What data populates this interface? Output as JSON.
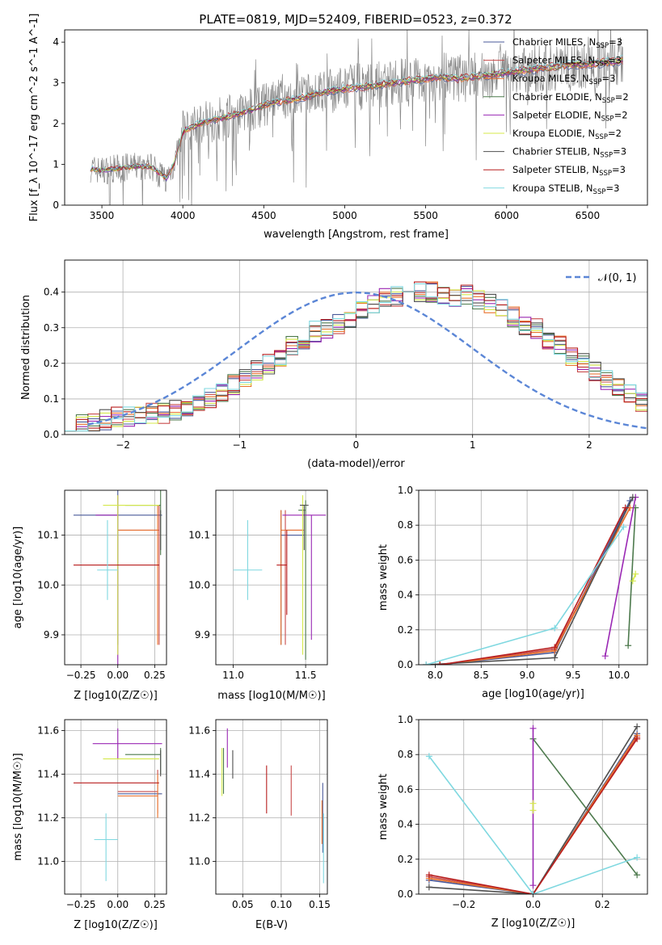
{
  "figure_title": "PLATE=0819, MJD=52409, FIBERID=0523, z=0.372",
  "colors": {
    "Chabrier MILES": "#4a5a9a",
    "Salpeter MILES": "#c84b4b",
    "Kroupa MILES": "#e8702a",
    "Chabrier ELODIE": "#4d7a4d",
    "Salpeter ELODIE": "#9a28b4",
    "Kroupa ELODIE": "#d4e84a",
    "Chabrier STELIB": "#505050",
    "Salpeter STELIB": "#b81e1e",
    "Kroupa STELIB": "#7fd8e0",
    "data": "#8a8a8a",
    "gauss": "#5b86d6",
    "grid": "#b0b0b0"
  },
  "chart_data": [
    {
      "id": "spectrum",
      "type": "line",
      "title": "PLATE=0819, MJD=52409, FIBERID=0523, z=0.372",
      "xlabel": "wavelength [Angstrom, rest frame]",
      "ylabel": "Flux [f_λ 10^-17 erg cm^-2 s^-1 A^-1]",
      "xlim": [
        3270,
        6870
      ],
      "ylim": [
        0,
        4.3
      ],
      "xticks": [
        3500,
        4000,
        4500,
        5000,
        5500,
        6000,
        6500
      ],
      "yticks": [
        0,
        1,
        2,
        3,
        4
      ],
      "grid": false,
      "legend_position": "top-right",
      "model_anchors": {
        "x": [
          3430,
          3500,
          3600,
          3700,
          3800,
          3900,
          3950,
          4000,
          4100,
          4200,
          4300,
          4400,
          4500,
          4600,
          4700,
          4800,
          4900,
          5000,
          5100,
          5200,
          5300,
          5400,
          5500,
          5600,
          5700,
          5800,
          5900,
          6000,
          6100,
          6200,
          6300,
          6400,
          6500,
          6600,
          6720
        ],
        "y": [
          0.9,
          0.85,
          0.9,
          0.95,
          0.95,
          0.65,
          1.05,
          1.8,
          2.0,
          2.1,
          2.2,
          2.3,
          2.45,
          2.55,
          2.6,
          2.7,
          2.8,
          2.85,
          2.9,
          2.95,
          3.0,
          3.05,
          3.1,
          3.15,
          3.1,
          3.15,
          3.2,
          3.25,
          3.3,
          3.35,
          3.4,
          3.45,
          3.45,
          3.5,
          3.55
        ]
      },
      "series": [
        {
          "name": "Chabrier MILES, N_SSP=3",
          "label_main": "Chabrier MILES, N",
          "label_sub": "SSP",
          "label_tail": "=3"
        },
        {
          "name": "Salpeter MILES, N_SSP=3",
          "label_main": "Salpeter MILES, N",
          "label_sub": "SSP",
          "label_tail": "=3"
        },
        {
          "name": "Kroupa MILES, N_SSP=3",
          "label_main": "Kroupa MILES, N",
          "label_sub": "SSP",
          "label_tail": "=3"
        },
        {
          "name": "Chabrier ELODIE, N_SSP=2",
          "label_main": "Chabrier ELODIE, N",
          "label_sub": "SSP",
          "label_tail": "=2"
        },
        {
          "name": "Salpeter ELODIE, N_SSP=2",
          "label_main": "Salpeter ELODIE, N",
          "label_sub": "SSP",
          "label_tail": "=2"
        },
        {
          "name": "Kroupa ELODIE, N_SSP=2",
          "label_main": "Kroupa ELODIE, N",
          "label_sub": "SSP",
          "label_tail": "=2"
        },
        {
          "name": "Chabrier STELIB, N_SSP=3",
          "label_main": "Chabrier STELIB, N",
          "label_sub": "SSP",
          "label_tail": "=3"
        },
        {
          "name": "Salpeter STELIB, N_SSP=3",
          "label_main": "Salpeter STELIB, N",
          "label_sub": "SSP",
          "label_tail": "=3"
        },
        {
          "name": "Kroupa STELIB, N_SSP=3",
          "label_main": "Kroupa STELIB, N",
          "label_sub": "SSP",
          "label_tail": "=3"
        }
      ]
    },
    {
      "id": "residuals",
      "type": "area",
      "xlabel": "(data-model)/error",
      "ylabel": "Normed distribution",
      "xlim": [
        -2.5,
        2.5
      ],
      "ylim": [
        0,
        0.49
      ],
      "xticks": [
        -2,
        -1,
        0,
        1,
        2
      ],
      "yticks": [
        0.0,
        0.1,
        0.2,
        0.3,
        0.4
      ],
      "grid": true,
      "legend_position": "top-right",
      "legend_label": "𝒩(0, 1)",
      "hist_bin_width": 0.1,
      "hist_edges_start": -2.5,
      "hist_envelope": [
        0.03,
        0.03,
        0.03,
        0.04,
        0.05,
        0.05,
        0.06,
        0.06,
        0.06,
        0.07,
        0.08,
        0.09,
        0.1,
        0.12,
        0.14,
        0.16,
        0.18,
        0.2,
        0.22,
        0.25,
        0.27,
        0.29,
        0.3,
        0.31,
        0.33,
        0.35,
        0.37,
        0.38,
        0.39,
        0.39,
        0.4,
        0.4,
        0.39,
        0.39,
        0.39,
        0.38,
        0.37,
        0.35,
        0.33,
        0.31,
        0.3,
        0.27,
        0.25,
        0.22,
        0.2,
        0.18,
        0.15,
        0.13,
        0.11,
        0.09
      ]
    },
    {
      "id": "age_vs_Z",
      "type": "scatter",
      "xlabel": "Z [log10(Z/Z☉)]",
      "ylabel": "age [log10(age/yr)]",
      "xlim": [
        -0.36,
        0.33
      ],
      "ylim": [
        9.84,
        10.19
      ],
      "xticks": [
        -0.25,
        0.0,
        0.25
      ],
      "yticks": [
        9.9,
        10.0,
        10.1
      ],
      "grid": true,
      "errorbars": [
        {
          "series": "Chabrier MILES",
          "x": 0.0,
          "y": 10.14,
          "xerr": [
            0.3,
            0.3
          ],
          "yerr": [
            0.26,
            0.05
          ]
        },
        {
          "series": "Salpeter MILES",
          "x": 0.28,
          "y": 10.11,
          "xerr": [
            0.28,
            0.0
          ],
          "yerr": [
            0.23,
            0.05
          ]
        },
        {
          "series": "Kroupa MILES",
          "x": 0.27,
          "y": 10.11,
          "xerr": [
            0.27,
            0.0
          ],
          "yerr": [
            0.23,
            0.05
          ]
        },
        {
          "series": "Chabrier ELODIE",
          "x": 0.29,
          "y": 10.16,
          "xerr": [
            0.24,
            0.0
          ],
          "yerr": [
            0.1,
            0.03
          ]
        },
        {
          "series": "Salpeter ELODIE",
          "x": 0.0,
          "y": 10.14,
          "xerr": [
            0.15,
            0.0
          ],
          "yerr": [
            0.3,
            0.04
          ]
        },
        {
          "series": "Kroupa ELODIE",
          "x": 0.0,
          "y": 10.16,
          "xerr": [
            0.1,
            0.28
          ],
          "yerr": [
            0.3,
            0.02
          ]
        },
        {
          "series": "Chabrier STELIB",
          "x": 0.29,
          "y": 10.11,
          "xerr": [
            0.0,
            0.0
          ],
          "yerr": [
            0.04,
            0.04
          ]
        },
        {
          "series": "Salpeter STELIB",
          "x": 0.0,
          "y": 10.04,
          "xerr": [
            0.3,
            0.28
          ],
          "yerr": [
            0.0,
            0.0
          ]
        },
        {
          "series": "Kroupa STELIB",
          "x": -0.07,
          "y": 10.03,
          "xerr": [
            0.07,
            0.07
          ],
          "yerr": [
            0.06,
            0.1
          ]
        }
      ]
    },
    {
      "id": "age_vs_mass",
      "type": "scatter",
      "xlabel": "mass [log10(M/M☉)]",
      "ylabel": "",
      "xlim": [
        10.88,
        11.65
      ],
      "ylim": [
        9.84,
        10.19
      ],
      "xticks": [
        11.0,
        11.5
      ],
      "yticks": [
        9.9,
        10.0,
        10.1
      ],
      "grid": true,
      "errorbars": [
        {
          "series": "Chabrier MILES",
          "x": 11.33,
          "y": 10.1,
          "xerr": [
            0.0,
            0.16
          ],
          "yerr": [
            0.22,
            0.05
          ]
        },
        {
          "series": "Salpeter MILES",
          "x": 11.36,
          "y": 10.11,
          "xerr": [
            0.0,
            0.13
          ],
          "yerr": [
            0.23,
            0.04
          ]
        },
        {
          "series": "Kroupa MILES",
          "x": 11.33,
          "y": 10.11,
          "xerr": [
            0.0,
            0.15
          ],
          "yerr": [
            0.23,
            0.04
          ]
        },
        {
          "series": "Chabrier ELODIE",
          "x": 11.5,
          "y": 10.15,
          "xerr": [
            0.05,
            0.0
          ],
          "yerr": [
            0.3,
            0.02
          ]
        },
        {
          "series": "Salpeter ELODIE",
          "x": 11.54,
          "y": 10.14,
          "xerr": [
            0.2,
            0.1
          ],
          "yerr": [
            0.25,
            0.0
          ]
        },
        {
          "series": "Kroupa ELODIE",
          "x": 11.48,
          "y": 10.16,
          "xerr": [
            0.0,
            0.03
          ],
          "yerr": [
            0.3,
            0.02
          ]
        },
        {
          "series": "Chabrier STELIB",
          "x": 11.49,
          "y": 10.16,
          "xerr": [
            0.03,
            0.03
          ],
          "yerr": [
            0.09,
            0.0
          ]
        },
        {
          "series": "Salpeter STELIB",
          "x": 11.37,
          "y": 10.04,
          "xerr": [
            0.07,
            0.0
          ],
          "yerr": [
            0.1,
            0.07
          ]
        },
        {
          "series": "Kroupa STELIB",
          "x": 11.1,
          "y": 10.03,
          "xerr": [
            0.1,
            0.1
          ],
          "yerr": [
            0.06,
            0.1
          ]
        }
      ]
    },
    {
      "id": "weight_vs_age",
      "type": "line",
      "xlabel": "age [log10(age/yr)]",
      "ylabel": "mass weight",
      "xlim": [
        7.82,
        10.31
      ],
      "ylim": [
        0.0,
        1.0
      ],
      "xticks": [
        8.0,
        8.5,
        9.0,
        9.5,
        10.0
      ],
      "yticks": [
        0.0,
        0.2,
        0.4,
        0.6,
        0.8,
        1.0
      ],
      "grid": true,
      "series": [
        {
          "series": "Chabrier MILES",
          "x": [
            8.05,
            9.3,
            10.12
          ],
          "y": [
            0.0,
            0.07,
            0.94
          ]
        },
        {
          "series": "Salpeter MILES",
          "x": [
            8.05,
            9.3,
            10.12
          ],
          "y": [
            0.0,
            0.09,
            0.9
          ]
        },
        {
          "series": "Kroupa MILES",
          "x": [
            8.05,
            9.3,
            10.12
          ],
          "y": [
            0.0,
            0.08,
            0.9
          ]
        },
        {
          "series": "Chabrier ELODIE",
          "x": [
            10.1,
            10.18
          ],
          "y": [
            0.11,
            0.9
          ]
        },
        {
          "series": "Salpeter ELODIE",
          "x": [
            9.85,
            10.18
          ],
          "y": [
            0.05,
            0.96
          ]
        },
        {
          "series": "Kroupa ELODIE",
          "x": [
            10.15,
            10.18
          ],
          "y": [
            0.48,
            0.52
          ]
        },
        {
          "series": "Chabrier STELIB",
          "x": [
            7.9,
            9.3,
            10.15
          ],
          "y": [
            0.0,
            0.04,
            0.96
          ]
        },
        {
          "series": "Salpeter STELIB",
          "x": [
            8.05,
            9.3,
            10.07
          ],
          "y": [
            0.0,
            0.1,
            0.9
          ]
        },
        {
          "series": "Kroupa STELIB",
          "x": [
            7.9,
            9.3,
            10.05
          ],
          "y": [
            0.0,
            0.21,
            0.79
          ]
        }
      ]
    },
    {
      "id": "mass_vs_Z",
      "type": "scatter",
      "xlabel": "Z [log10(Z/Z☉)]",
      "ylabel": "mass [log10(M/M☉)]",
      "xlim": [
        -0.36,
        0.33
      ],
      "ylim": [
        10.85,
        11.65
      ],
      "xticks": [
        -0.25,
        0.0,
        0.25
      ],
      "yticks": [
        11.0,
        11.2,
        11.4,
        11.6
      ],
      "grid": true,
      "errorbars": [
        {
          "series": "Chabrier MILES",
          "x": 0.0,
          "y": 11.31,
          "xerr": [
            0.0,
            0.3
          ],
          "yerr": [
            0.0,
            0.0
          ]
        },
        {
          "series": "Salpeter MILES",
          "x": 0.27,
          "y": 11.32,
          "xerr": [
            0.27,
            0.0
          ],
          "yerr": [
            0.1,
            0.1
          ]
        },
        {
          "series": "Kroupa MILES",
          "x": 0.27,
          "y": 11.3,
          "xerr": [
            0.27,
            0.0
          ],
          "yerr": [
            0.1,
            0.1
          ]
        },
        {
          "series": "Chabrier ELODIE",
          "x": 0.29,
          "y": 11.49,
          "xerr": [
            0.24,
            0.0
          ],
          "yerr": [
            0.09,
            0.03
          ]
        },
        {
          "series": "Salpeter ELODIE",
          "x": 0.0,
          "y": 11.54,
          "xerr": [
            0.17,
            0.3
          ],
          "yerr": [
            0.07,
            0.07
          ]
        },
        {
          "series": "Kroupa ELODIE",
          "x": 0.0,
          "y": 11.47,
          "xerr": [
            0.1,
            0.28
          ],
          "yerr": [
            0.0,
            0.0
          ]
        },
        {
          "series": "Chabrier STELIB",
          "x": 0.29,
          "y": 11.48,
          "xerr": [
            0.0,
            0.0
          ],
          "yerr": [
            0.09,
            0.03
          ]
        },
        {
          "series": "Salpeter STELIB",
          "x": 0.0,
          "y": 11.36,
          "xerr": [
            0.3,
            0.28
          ],
          "yerr": [
            0.0,
            0.0
          ]
        },
        {
          "series": "Kroupa STELIB",
          "x": -0.08,
          "y": 11.1,
          "xerr": [
            0.08,
            0.08
          ],
          "yerr": [
            0.19,
            0.12
          ]
        }
      ]
    },
    {
      "id": "mass_vs_ebv",
      "type": "scatter",
      "xlabel": "E(B-V)",
      "ylabel": "",
      "xlim": [
        0.015,
        0.16
      ],
      "ylim": [
        10.85,
        11.65
      ],
      "xticks": [
        0.05,
        0.1,
        0.15
      ],
      "yticks": [
        11.0,
        11.2,
        11.4,
        11.6
      ],
      "grid": true,
      "errorbars": [
        {
          "series": "Chabrier MILES",
          "x": 0.154,
          "y": 11.24,
          "xerr": [
            0.0,
            0.0
          ],
          "yerr": [
            0.2,
            0.12
          ]
        },
        {
          "series": "Salpeter MILES",
          "x": 0.113,
          "y": 11.33,
          "xerr": [
            0.0,
            0.0
          ],
          "yerr": [
            0.12,
            0.11
          ]
        },
        {
          "series": "Kroupa MILES",
          "x": 0.153,
          "y": 11.2,
          "xerr": [
            0.0,
            0.0
          ],
          "yerr": [
            0.12,
            0.08
          ]
        },
        {
          "series": "Chabrier ELODIE",
          "x": 0.025,
          "y": 11.4,
          "xerr": [
            0.0,
            0.0
          ],
          "yerr": [
            0.09,
            0.12
          ]
        },
        {
          "series": "Salpeter ELODIE",
          "x": 0.03,
          "y": 11.52,
          "xerr": [
            0.0,
            0.0
          ],
          "yerr": [
            0.09,
            0.09
          ]
        },
        {
          "series": "Kroupa ELODIE",
          "x": 0.023,
          "y": 11.4,
          "xerr": [
            0.0,
            0.0
          ],
          "yerr": [
            0.1,
            0.12
          ]
        },
        {
          "series": "Chabrier STELIB",
          "x": 0.037,
          "y": 11.47,
          "xerr": [
            0.0,
            0.0
          ],
          "yerr": [
            0.09,
            0.04
          ]
        },
        {
          "series": "Salpeter STELIB",
          "x": 0.081,
          "y": 11.33,
          "xerr": [
            0.0,
            0.0
          ],
          "yerr": [
            0.11,
            0.11
          ]
        },
        {
          "series": "Kroupa STELIB",
          "x": 0.155,
          "y": 11.05,
          "xerr": [
            0.0,
            0.0
          ],
          "yerr": [
            0.15,
            0.17
          ]
        }
      ]
    },
    {
      "id": "weight_vs_Z",
      "type": "line",
      "xlabel": "Z [log10(Z/Z☉)]",
      "ylabel": "mass weight",
      "xlim": [
        -0.33,
        0.33
      ],
      "ylim": [
        0.0,
        1.0
      ],
      "xticks": [
        -0.2,
        0.0,
        0.2
      ],
      "yticks": [
        0.0,
        0.2,
        0.4,
        0.6,
        0.8,
        1.0
      ],
      "grid": true,
      "series": [
        {
          "series": "Chabrier MILES",
          "x": [
            -0.3,
            0.0,
            0.3
          ],
          "y": [
            0.08,
            0.0,
            0.92
          ]
        },
        {
          "series": "Salpeter MILES",
          "x": [
            -0.3,
            0.0,
            0.3
          ],
          "y": [
            0.1,
            0.0,
            0.9
          ]
        },
        {
          "series": "Kroupa MILES",
          "x": [
            -0.3,
            0.0,
            0.3
          ],
          "y": [
            0.09,
            0.0,
            0.91
          ]
        },
        {
          "series": "Chabrier ELODIE",
          "x": [
            0.0,
            0.3
          ],
          "y": [
            0.89,
            0.11
          ]
        },
        {
          "series": "Salpeter ELODIE",
          "x": [
            0.0,
            0.0
          ],
          "y": [
            0.05,
            0.95
          ]
        },
        {
          "series": "Kroupa ELODIE",
          "x": [
            0.0,
            0.0
          ],
          "y": [
            0.48,
            0.52
          ]
        },
        {
          "series": "Chabrier STELIB",
          "x": [
            -0.3,
            0.0,
            0.3
          ],
          "y": [
            0.04,
            0.0,
            0.96
          ]
        },
        {
          "series": "Salpeter STELIB",
          "x": [
            -0.3,
            0.0,
            0.3
          ],
          "y": [
            0.11,
            0.0,
            0.89
          ]
        },
        {
          "series": "Kroupa STELIB",
          "x": [
            -0.3,
            0.0,
            0.3
          ],
          "y": [
            0.79,
            0.0,
            0.21
          ]
        }
      ]
    }
  ]
}
